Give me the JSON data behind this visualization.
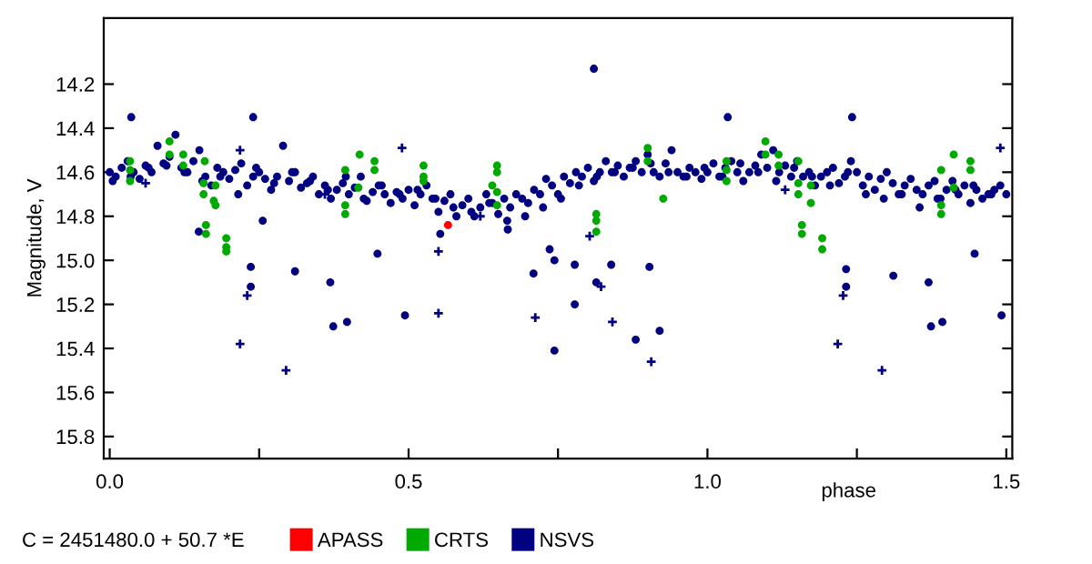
{
  "chart_data": {
    "type": "scatter",
    "ylabel": "Magnitude, V",
    "xlabel": "phase",
    "xlim": [
      -0.01,
      1.51
    ],
    "ylim": [
      15.9,
      13.9
    ],
    "xticks": [
      {
        "value": 0,
        "label": "0.0"
      },
      {
        "value": 0.25,
        "label": null
      },
      {
        "value": 0.5,
        "label": "0.5"
      },
      {
        "value": 0.75,
        "label": null
      },
      {
        "value": 1,
        "label": "1.0"
      },
      {
        "value": 1.25,
        "label": null
      },
      {
        "value": 1.5,
        "label": "1.5"
      }
    ],
    "yticks": [
      14.2,
      14.4,
      14.6,
      14.8,
      {
        "value": 15,
        "label": "15.0"
      },
      15.2,
      15.4,
      15.6,
      15.8
    ],
    "grid": false,
    "legend": "bottom",
    "annotations": [
      "C = 2451480.0 + 50.7 *E"
    ],
    "series": [
      {
        "name": "NSVS",
        "color": "#000080",
        "marker": "circle",
        "x": [
          0.0,
          0.01,
          0.02,
          0.03,
          0.04,
          0.05,
          0.06,
          0.07,
          0.08,
          0.09,
          0.1,
          0.11,
          0.12,
          0.13,
          0.14,
          0.15,
          0.16,
          0.17,
          0.18,
          0.19,
          0.2,
          0.21,
          0.22,
          0.23,
          0.24,
          0.25,
          0.26,
          0.27,
          0.28,
          0.29,
          0.3,
          0.31,
          0.32,
          0.33,
          0.34,
          0.35,
          0.36,
          0.37,
          0.38,
          0.39,
          0.4,
          0.41,
          0.42,
          0.43,
          0.44,
          0.45,
          0.46,
          0.47,
          0.48,
          0.49,
          0.5,
          0.51,
          0.52,
          0.53,
          0.54,
          0.55,
          0.56,
          0.57,
          0.58,
          0.59,
          0.6,
          0.61,
          0.62,
          0.63,
          0.64,
          0.65,
          0.66,
          0.67,
          0.68,
          0.69,
          0.7,
          0.71,
          0.72,
          0.73,
          0.74,
          0.75,
          0.76,
          0.77,
          0.78,
          0.79,
          0.8,
          0.81,
          0.82,
          0.83,
          0.84,
          0.85,
          0.86,
          0.87,
          0.88,
          0.89,
          0.9,
          0.91,
          0.92,
          0.93,
          0.94,
          0.95,
          0.96,
          0.97,
          0.98,
          0.99,
          1.0,
          1.01,
          1.02,
          1.03,
          1.04,
          1.05,
          1.06,
          1.07,
          1.08,
          1.09,
          1.1,
          1.11,
          1.12,
          1.13,
          1.14,
          1.15,
          1.16,
          1.17,
          1.18,
          1.19,
          1.2,
          1.21,
          1.22,
          1.23,
          1.24,
          1.25,
          1.26,
          1.27,
          1.28,
          1.29,
          1.3,
          1.31,
          1.32,
          1.33,
          1.34,
          1.35,
          1.36,
          1.37,
          1.38,
          1.39,
          1.4,
          1.41,
          1.42,
          1.43,
          1.44,
          1.45,
          1.46,
          1.47,
          1.48,
          1.49,
          1.5,
          0.005,
          0.035,
          0.065,
          0.095,
          0.125,
          0.155,
          0.185,
          0.215,
          0.245,
          0.275,
          0.305,
          0.335,
          0.365,
          0.395,
          0.425,
          0.455,
          0.485,
          0.515,
          0.545,
          0.575,
          0.605,
          0.635,
          0.665,
          0.695,
          0.725,
          0.755,
          0.785,
          0.815,
          0.845,
          0.875,
          0.905,
          0.935,
          0.965,
          0.995,
          1.025,
          1.055,
          1.085,
          1.115,
          1.145,
          1.175,
          1.205,
          1.235,
          1.265,
          1.295,
          1.325,
          1.355,
          1.385,
          1.415,
          1.445,
          1.475,
          0.036,
          0.24,
          0.236,
          0.236,
          0.31,
          0.369,
          0.374,
          0.397,
          0.448,
          0.494,
          0.709,
          0.149,
          0.256,
          0.553,
          0.666,
          0.81,
          1.034,
          1.242,
          0.736,
          0.744,
          0.778,
          0.814,
          0.839,
          0.778,
          0.744,
          0.88,
          0.903,
          0.92,
          1.232,
          1.232,
          1.311,
          1.37,
          1.374,
          1.393,
          1.447,
          1.492
        ],
        "values": [
          14.6,
          14.62,
          14.58,
          14.55,
          14.6,
          14.63,
          14.57,
          14.6,
          14.48,
          14.56,
          14.53,
          14.43,
          14.58,
          14.6,
          14.55,
          14.5,
          14.62,
          14.66,
          14.58,
          14.6,
          14.63,
          14.59,
          14.56,
          14.66,
          14.62,
          14.6,
          14.63,
          14.68,
          14.62,
          14.48,
          14.64,
          14.6,
          14.67,
          14.65,
          14.62,
          14.7,
          14.66,
          14.72,
          14.68,
          14.65,
          14.7,
          14.67,
          14.62,
          14.73,
          14.69,
          14.66,
          14.7,
          14.74,
          14.69,
          14.72,
          14.68,
          14.75,
          14.7,
          14.66,
          14.72,
          14.78,
          14.73,
          14.7,
          14.8,
          14.75,
          14.72,
          14.8,
          14.76,
          14.7,
          14.74,
          14.79,
          14.72,
          14.76,
          14.7,
          14.72,
          14.74,
          14.68,
          14.7,
          14.63,
          14.66,
          14.7,
          14.62,
          14.65,
          14.6,
          14.62,
          14.58,
          14.64,
          14.6,
          14.55,
          14.6,
          14.57,
          14.62,
          14.58,
          14.55,
          14.6,
          14.52,
          14.6,
          14.62,
          14.56,
          14.5,
          14.6,
          14.62,
          14.58,
          14.6,
          14.63,
          14.6,
          14.56,
          14.62,
          14.58,
          14.55,
          14.6,
          14.64,
          14.6,
          14.57,
          14.52,
          14.58,
          14.5,
          14.6,
          14.57,
          14.62,
          14.55,
          14.62,
          14.6,
          14.66,
          14.62,
          14.6,
          14.58,
          14.65,
          14.62,
          14.55,
          14.6,
          14.66,
          14.62,
          14.68,
          14.63,
          14.6,
          14.65,
          14.7,
          14.66,
          14.63,
          14.68,
          14.7,
          14.66,
          14.64,
          14.72,
          14.68,
          14.64,
          14.7,
          14.66,
          14.74,
          14.68,
          14.72,
          14.7,
          14.68,
          14.66,
          14.7,
          14.64,
          14.62,
          14.58,
          14.57,
          14.6,
          14.64,
          14.62,
          14.7,
          14.58,
          14.65,
          14.6,
          14.64,
          14.68,
          14.62,
          14.72,
          14.66,
          14.7,
          14.68,
          14.72,
          14.76,
          14.78,
          14.74,
          14.82,
          14.8,
          14.76,
          14.72,
          14.66,
          14.62,
          14.6,
          14.58,
          14.56,
          14.6,
          14.62,
          14.58,
          14.62,
          14.56,
          14.6,
          14.64,
          14.58,
          14.62,
          14.66,
          14.6,
          14.7,
          14.72,
          14.7,
          14.76,
          14.72,
          14.68,
          14.66,
          14.7,
          14.35,
          14.35,
          15.03,
          15.12,
          15.05,
          15.1,
          15.3,
          15.28,
          14.97,
          15.25,
          15.06,
          14.87,
          14.82,
          14.88,
          14.86,
          14.13,
          14.35,
          14.35,
          14.95,
          15.0,
          15.02,
          15.1,
          15.02,
          15.2,
          15.41,
          15.36,
          15.03,
          15.32,
          15.04,
          15.12,
          15.07,
          15.1,
          15.3,
          15.28,
          14.97,
          15.25
        ]
      },
      {
        "color": "#000080",
        "marker": "cross",
        "x": [
          0.218,
          0.23,
          0.295,
          0.55,
          0.712,
          0.55,
          0.489,
          0.218,
          0.841,
          0.906,
          1.218,
          1.227,
          1.292,
          0.822,
          0.803,
          1.49,
          0.06,
          0.36,
          0.62,
          1.13
        ],
        "values": [
          15.38,
          15.16,
          15.5,
          15.24,
          15.26,
          14.96,
          14.49,
          14.5,
          15.28,
          15.46,
          15.38,
          15.16,
          15.5,
          15.12,
          14.89,
          14.49,
          14.65,
          14.7,
          14.8,
          14.68
        ]
      },
      {
        "name": "CRTS",
        "color": "#00aa00",
        "marker": "circle",
        "x": [
          0.034,
          0.034,
          0.034,
          0.1,
          0.1,
          0.123,
          0.123,
          0.159,
          0.157,
          0.157,
          0.161,
          0.161,
          0.177,
          0.174,
          0.177,
          0.195,
          0.195,
          0.195,
          0.394,
          0.394,
          0.394,
          0.418,
          0.416,
          0.443,
          0.443,
          0.525,
          0.525,
          0.525,
          0.64,
          0.648,
          0.648,
          0.648,
          0.648,
          0.814,
          0.814,
          0.814,
          0.9,
          0.9,
          0.926,
          1.032,
          1.032,
          1.032,
          1.097,
          1.097,
          1.119,
          1.119,
          1.152,
          1.152,
          1.152,
          1.158,
          1.158,
          1.173,
          1.173,
          1.192,
          1.192,
          1.391,
          1.391,
          1.391,
          1.412,
          1.412,
          1.44,
          1.44
        ],
        "values": [
          14.55,
          14.59,
          14.64,
          14.46,
          14.52,
          14.52,
          14.57,
          14.55,
          14.65,
          14.7,
          14.84,
          14.88,
          14.66,
          14.73,
          14.75,
          14.9,
          14.94,
          14.96,
          14.59,
          14.75,
          14.79,
          14.52,
          14.67,
          14.55,
          14.59,
          14.57,
          14.62,
          14.64,
          14.66,
          14.57,
          14.6,
          14.69,
          14.75,
          14.79,
          14.82,
          14.87,
          14.49,
          14.55,
          14.72,
          14.55,
          14.59,
          14.64,
          14.46,
          14.52,
          14.52,
          14.57,
          14.55,
          14.65,
          14.7,
          14.84,
          14.88,
          14.66,
          14.74,
          14.9,
          14.95,
          14.59,
          14.75,
          14.79,
          14.52,
          14.67,
          14.55,
          14.59
        ]
      },
      {
        "name": "APASS",
        "color": "#ff0000",
        "marker": "circle",
        "x": [
          0.566
        ],
        "values": [
          14.84
        ]
      }
    ]
  }
}
